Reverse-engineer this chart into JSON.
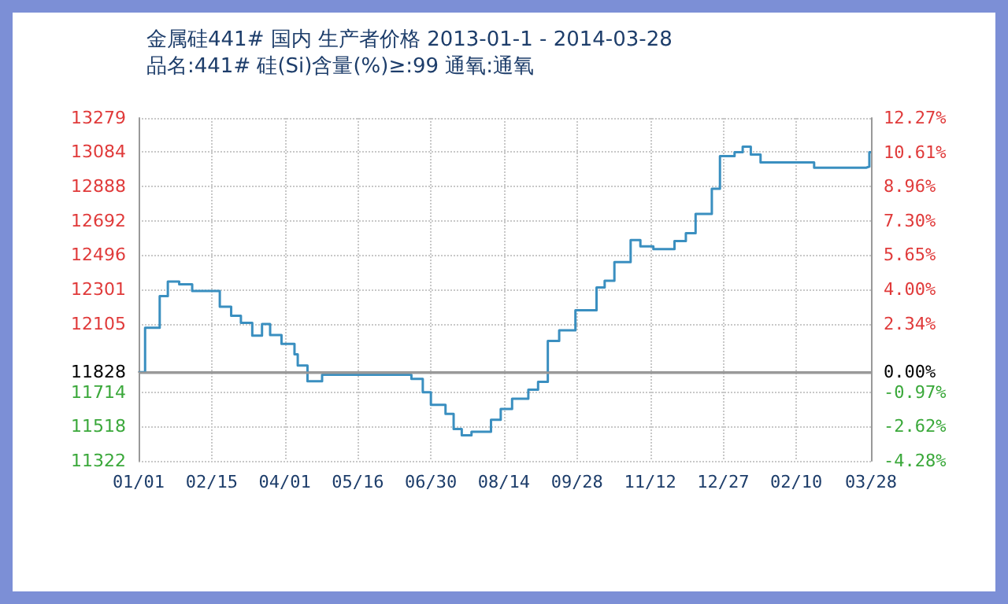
{
  "chart_data": {
    "type": "step",
    "title": "金属硅441# 国内 生产者价格 2013-01-1 - 2014-03-28",
    "subtitle": "品名:441# 硅(Si)含量(%)≥:99 通氧:通氧",
    "x": [
      "2013-01-01",
      "2013-01-05",
      "2013-01-14",
      "2013-01-19",
      "2013-01-26",
      "2013-02-03",
      "2013-02-20",
      "2013-02-27",
      "2013-03-05",
      "2013-03-12",
      "2013-03-18",
      "2013-03-23",
      "2013-03-30",
      "2013-04-07",
      "2013-04-09",
      "2013-04-15",
      "2013-04-24",
      "2013-06-18",
      "2013-06-25",
      "2013-06-30",
      "2013-07-09",
      "2013-07-14",
      "2013-07-19",
      "2013-07-25",
      "2013-08-06",
      "2013-08-12",
      "2013-08-19",
      "2013-08-29",
      "2013-09-04",
      "2013-09-10",
      "2013-09-17",
      "2013-09-27",
      "2013-10-10",
      "2013-10-15",
      "2013-10-21",
      "2013-10-31",
      "2013-11-06",
      "2013-11-14",
      "2013-11-27",
      "2013-12-04",
      "2013-12-10",
      "2013-12-20",
      "2013-12-25",
      "2014-01-03",
      "2014-01-08",
      "2014-01-13",
      "2014-01-19",
      "2014-02-21",
      "2014-03-25",
      "2014-03-27",
      "2014-03-28"
    ],
    "series": [
      {
        "color": "#3a8fc0",
        "values": [
          11828,
          12082,
          12262,
          12345,
          12330,
          12291,
          12202,
          12150,
          12110,
          12037,
          12103,
          12040,
          11990,
          11930,
          11866,
          11776,
          11813,
          11790,
          11714,
          11642,
          11590,
          11504,
          11468,
          11488,
          11557,
          11618,
          11677,
          11728,
          11773,
          12006,
          12067,
          12181,
          12312,
          12350,
          12456,
          12582,
          12546,
          12531,
          12576,
          12621,
          12731,
          12875,
          13061,
          13084,
          13115,
          13070,
          13025,
          12995,
          13001,
          13084,
          13084
        ]
      }
    ],
    "xlim": [
      "2013-01-01",
      "2014-03-28"
    ],
    "xticks": [
      {
        "value": "2013-01-01",
        "label": "01/01"
      },
      {
        "value": "2013-02-15",
        "label": "02/15"
      },
      {
        "value": "2013-04-01",
        "label": "04/01"
      },
      {
        "value": "2013-05-16",
        "label": "05/16"
      },
      {
        "value": "2013-06-30",
        "label": "06/30"
      },
      {
        "value": "2013-08-14",
        "label": "08/14"
      },
      {
        "value": "2013-09-28",
        "label": "09/28"
      },
      {
        "value": "2013-11-12",
        "label": "11/12"
      },
      {
        "value": "2013-12-27",
        "label": "12/27"
      },
      {
        "value": "2014-02-10",
        "label": "02/10"
      },
      {
        "value": "2014-03-28",
        "label": "03/28"
      }
    ],
    "ylim": [
      11322,
      13279
    ],
    "yticks": [
      11322,
      11518,
      11714,
      11828,
      12105,
      12301,
      12496,
      12692,
      12888,
      13084,
      13279
    ],
    "y2lim": [
      -4.28,
      12.27
    ],
    "y2ticks": [
      {
        "value": -4.28,
        "label": "-4.28%"
      },
      {
        "value": -2.62,
        "label": "-2.62%"
      },
      {
        "value": -0.97,
        "label": "-0.97%"
      },
      {
        "value": 0,
        "label": "0.00%"
      },
      {
        "value": 2.34,
        "label": "2.34%"
      },
      {
        "value": 4.0,
        "label": "4.00%"
      },
      {
        "value": 5.65,
        "label": "5.65%"
      },
      {
        "value": 7.3,
        "label": "7.30%"
      },
      {
        "value": 8.96,
        "label": "8.96%"
      },
      {
        "value": 10.61,
        "label": "10.61%"
      },
      {
        "value": 12.27,
        "label": "12.27%"
      }
    ],
    "ref_lines": [
      {
        "axis": "y",
        "value": 11828,
        "color": "#999999"
      }
    ],
    "grid": true,
    "marker": "none",
    "line_style": "solid"
  }
}
